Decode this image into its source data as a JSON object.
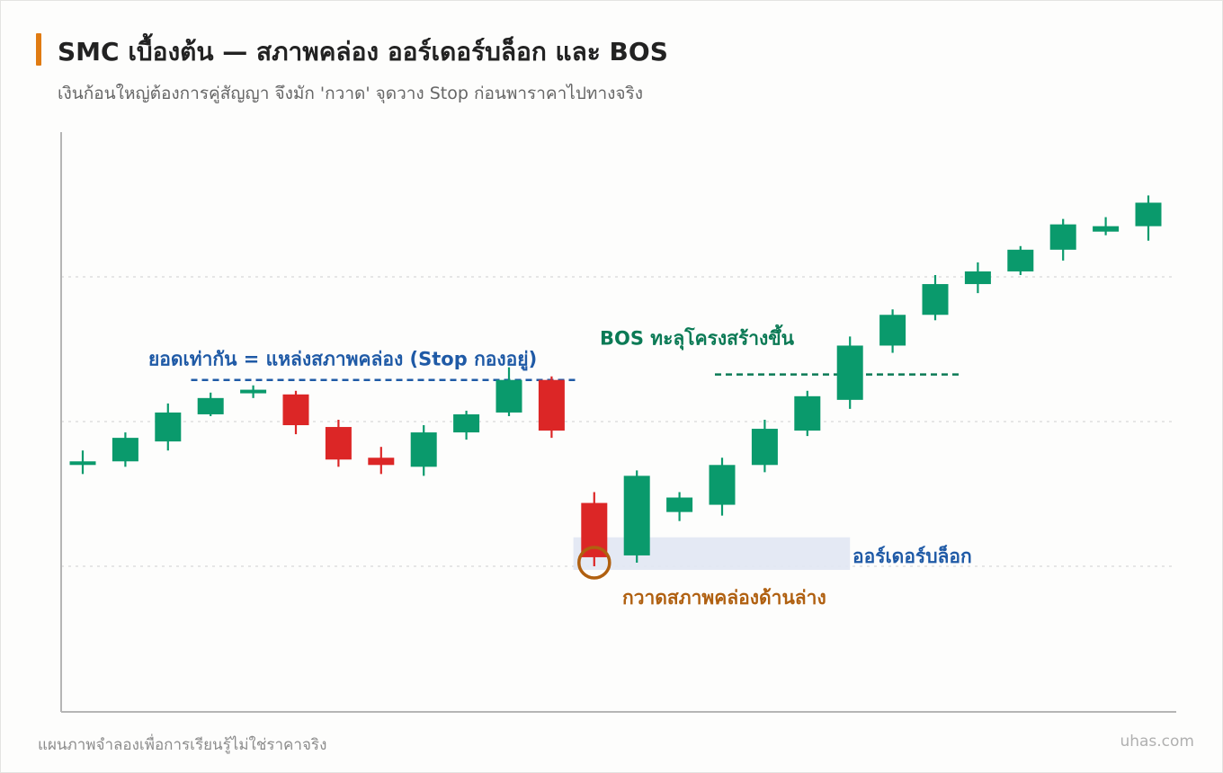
{
  "header": {
    "title": "SMC เบื้องต้น — สภาพคล่อง ออร์เดอร์บล็อก และ BOS",
    "subtitle": "เงินก้อนใหญ่ต้องการคู่สัญญา จึงมัก 'กวาด' จุดวาง Stop ก่อนพาราคาไปทางจริง",
    "accent_color": "#e07b12"
  },
  "footer": {
    "note": "แผนภาพจำลองเพื่อการเรียนรู้ไม่ใช่ราคาจริง",
    "brand": "uhas.com"
  },
  "chart_data": {
    "type": "candlestick",
    "title": "SMC เบื้องต้น — สภาพคล่อง ออร์เดอร์บล็อก และ BOS",
    "xlabel": "",
    "ylabel": "",
    "ylim": [
      0,
      130
    ],
    "grid": "horizontal dotted",
    "grid_values": [
      20,
      60,
      100
    ],
    "colors": {
      "up": "#0a9a6c",
      "down": "#dc2626"
    },
    "candles": [
      {
        "o": 48,
        "c": 49,
        "h": 52,
        "l": 45.5
      },
      {
        "o": 49,
        "c": 55.5,
        "h": 57,
        "l": 47.5
      },
      {
        "o": 54.5,
        "c": 62.5,
        "h": 65,
        "l": 52
      },
      {
        "o": 62,
        "c": 66.5,
        "h": 68,
        "l": 61.5
      },
      {
        "o": 68,
        "c": 68.8,
        "h": 70,
        "l": 66.5
      },
      {
        "o": 67.5,
        "c": 59,
        "h": 68.5,
        "l": 56.5
      },
      {
        "o": 58.5,
        "c": 49.5,
        "h": 60.5,
        "l": 47.5
      },
      {
        "o": 50,
        "c": 48,
        "h": 53,
        "l": 45.5
      },
      {
        "o": 47.5,
        "c": 57,
        "h": 59,
        "l": 45
      },
      {
        "o": 57,
        "c": 62,
        "h": 63,
        "l": 55
      },
      {
        "o": 62.5,
        "c": 71.5,
        "h": 75,
        "l": 61.5
      },
      {
        "o": 71.5,
        "c": 57.5,
        "h": 72.5,
        "l": 55.5
      },
      {
        "o": 37.5,
        "c": 22.5,
        "h": 40.5,
        "l": 20
      },
      {
        "o": 23,
        "c": 45,
        "h": 46.5,
        "l": 21
      },
      {
        "o": 35,
        "c": 39,
        "h": 40.5,
        "l": 32.5
      },
      {
        "o": 37,
        "c": 48,
        "h": 50,
        "l": 34
      },
      {
        "o": 48,
        "c": 58,
        "h": 60.5,
        "l": 46
      },
      {
        "o": 57.5,
        "c": 67,
        "h": 68.5,
        "l": 56
      },
      {
        "o": 66,
        "c": 81,
        "h": 83.5,
        "l": 63.5
      },
      {
        "o": 81,
        "c": 89.5,
        "h": 91,
        "l": 79
      },
      {
        "o": 89.5,
        "c": 98,
        "h": 100.5,
        "l": 88
      },
      {
        "o": 98,
        "c": 101.5,
        "h": 104,
        "l": 95.5
      },
      {
        "o": 101.5,
        "c": 107.5,
        "h": 108.5,
        "l": 100.5
      },
      {
        "o": 107.5,
        "c": 114.5,
        "h": 116,
        "l": 104.5
      },
      {
        "o": 112.5,
        "c": 114,
        "h": 116.5,
        "l": 111.5
      },
      {
        "o": 114,
        "c": 120.5,
        "h": 122.5,
        "l": 110
      }
    ],
    "annotations": {
      "equal_highs": {
        "text": "ยอดเท่ากัน = แหล่งสภาพคล่อง (Stop กองอยู่)",
        "level": 71.5,
        "from_index": 2.5,
        "to_index": 11.5,
        "color": "#1f5aa6"
      },
      "bos": {
        "text": "BOS ทะลุโครงสร้างขึ้น",
        "level": 73,
        "from_index": 15,
        "to_index": 20.5,
        "color": "#0b7a55"
      },
      "order_block": {
        "text": "ออร์เดอร์บล็อก",
        "low": 19,
        "high": 28,
        "from_index": 11.5,
        "to_index": 18,
        "color": "#1f5aa6"
      },
      "sweep": {
        "text": "กวาดสภาพคล่องด้านล่าง",
        "index": 12,
        "level": 21,
        "color": "#b06010"
      }
    }
  }
}
